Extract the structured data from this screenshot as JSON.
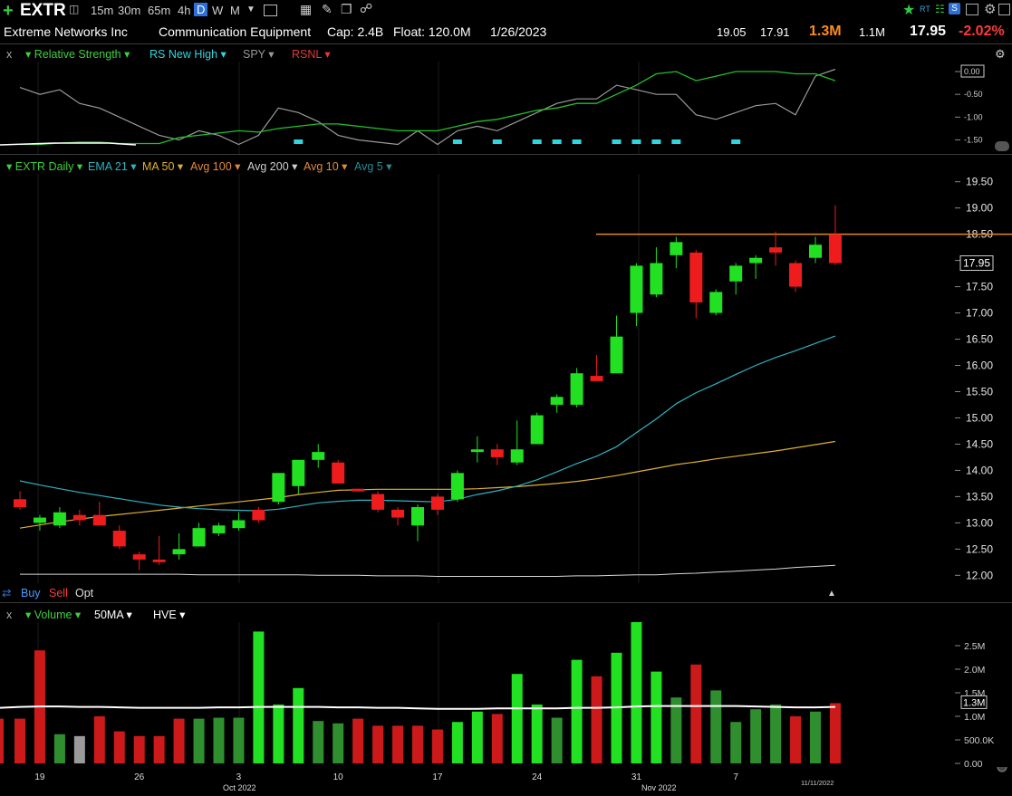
{
  "toolbar": {
    "symbol": "EXTR",
    "timeframes": [
      "15m",
      "30m",
      "65m",
      "4h",
      "D",
      "W",
      "M"
    ],
    "active_timeframe": "D"
  },
  "info": {
    "company": "Extreme Networks Inc",
    "industry": "Communication Equipment",
    "cap": "Cap: 2.4B",
    "float": "Float: 120.0M",
    "date": "1/26/2023",
    "high": "19.05",
    "low": "17.91",
    "volume": "1.3M",
    "avg_volume": "1.1M",
    "last": "17.95",
    "change": "-2.02%"
  },
  "rs_pane": {
    "close": "x",
    "items": [
      "Relative Strength",
      "RS New High",
      "SPY",
      "RSNL"
    ],
    "colors": {
      "rs": "#22c02a",
      "rsnh": "#2fd6e0",
      "spy": "#9a9a9a",
      "rsnl": "#e03a3a"
    },
    "axis": [
      "0.00",
      "-0.50",
      "-1.00",
      "-1.50"
    ]
  },
  "price_pane": {
    "items": [
      "EXTR Daily",
      "EMA 21",
      "MA 50",
      "Avg 100",
      "Avg 200",
      "Avg 10",
      "Avg 5"
    ],
    "colors": [
      "#3ecf3e",
      "#2fb3c0",
      "#e0b030",
      "#e38a3a",
      "#cfcfcf",
      "#e38a3a",
      "#2a8a9a"
    ],
    "axis": [
      "19.50",
      "19.00",
      "18.50",
      "18.00",
      "17.50",
      "17.00",
      "16.50",
      "16.00",
      "15.50",
      "15.00",
      "14.50",
      "14.00",
      "13.50",
      "13.00",
      "12.50",
      "12.00"
    ],
    "last_label": "17.95"
  },
  "order_bar": {
    "buy": "Buy",
    "sell": "Sell",
    "opt": "Opt"
  },
  "volume_pane": {
    "close": "x",
    "items": [
      "Volume",
      "50MA",
      "HVE"
    ],
    "axis": [
      "2.5M",
      "2.0M",
      "1.5M",
      "1.0M",
      "500.0K",
      "0.00"
    ],
    "last_label": "1.3M"
  },
  "x_axis": {
    "labels": [
      "19",
      "26",
      "3",
      "10",
      "17",
      "24",
      "31",
      "7"
    ],
    "months": [
      "Oct 2022",
      "Nov 2022"
    ],
    "last_date": "11/11/2022"
  },
  "chart_data": {
    "type": "candlestick",
    "title": "EXTR Daily",
    "ylim": [
      11.85,
      19.65
    ],
    "candles": [
      {
        "o": 13.45,
        "h": 13.6,
        "l": 13.25,
        "c": 13.3
      },
      {
        "o": 13.0,
        "h": 13.15,
        "l": 12.85,
        "c": 13.1
      },
      {
        "o": 12.95,
        "h": 13.3,
        "l": 12.9,
        "c": 13.2
      },
      {
        "o": 13.15,
        "h": 13.25,
        "l": 12.95,
        "c": 13.05
      },
      {
        "o": 13.15,
        "h": 13.4,
        "l": 12.95,
        "c": 12.95
      },
      {
        "o": 12.85,
        "h": 12.95,
        "l": 12.5,
        "c": 12.55
      },
      {
        "o": 12.4,
        "h": 12.45,
        "l": 12.1,
        "c": 12.3
      },
      {
        "o": 12.3,
        "h": 12.75,
        "l": 12.2,
        "c": 12.25
      },
      {
        "o": 12.4,
        "h": 12.8,
        "l": 12.3,
        "c": 12.5
      },
      {
        "o": 12.55,
        "h": 13.0,
        "l": 12.55,
        "c": 12.9
      },
      {
        "o": 12.8,
        "h": 13.0,
        "l": 12.75,
        "c": 12.95
      },
      {
        "o": 12.9,
        "h": 13.2,
        "l": 12.85,
        "c": 13.05
      },
      {
        "o": 13.25,
        "h": 13.3,
        "l": 13.0,
        "c": 13.05
      },
      {
        "o": 13.4,
        "h": 13.95,
        "l": 13.35,
        "c": 13.95
      },
      {
        "o": 13.7,
        "h": 14.2,
        "l": 13.55,
        "c": 14.2
      },
      {
        "o": 14.2,
        "h": 14.5,
        "l": 14.05,
        "c": 14.35
      },
      {
        "o": 14.15,
        "h": 14.2,
        "l": 13.75,
        "c": 13.75
      },
      {
        "o": 13.65,
        "h": 13.65,
        "l": 13.6,
        "c": 13.6
      },
      {
        "o": 13.55,
        "h": 13.6,
        "l": 13.2,
        "c": 13.25
      },
      {
        "o": 13.25,
        "h": 13.3,
        "l": 12.95,
        "c": 13.1
      },
      {
        "o": 12.95,
        "h": 13.35,
        "l": 12.65,
        "c": 13.3
      },
      {
        "o": 13.5,
        "h": 13.55,
        "l": 13.15,
        "c": 13.25
      },
      {
        "o": 13.45,
        "h": 14.0,
        "l": 13.4,
        "c": 13.95
      },
      {
        "o": 14.35,
        "h": 14.65,
        "l": 14.15,
        "c": 14.4
      },
      {
        "o": 14.4,
        "h": 14.5,
        "l": 14.1,
        "c": 14.25
      },
      {
        "o": 14.15,
        "h": 14.95,
        "l": 14.1,
        "c": 14.4
      },
      {
        "o": 14.5,
        "h": 15.1,
        "l": 14.5,
        "c": 15.05
      },
      {
        "o": 15.25,
        "h": 15.45,
        "l": 15.1,
        "c": 15.4
      },
      {
        "o": 15.25,
        "h": 15.95,
        "l": 15.2,
        "c": 15.85
      },
      {
        "o": 15.8,
        "h": 16.2,
        "l": 15.7,
        "c": 15.7
      },
      {
        "o": 15.85,
        "h": 16.95,
        "l": 15.85,
        "c": 16.55
      },
      {
        "o": 17.0,
        "h": 17.95,
        "l": 16.75,
        "c": 17.9
      },
      {
        "o": 17.35,
        "h": 18.25,
        "l": 17.3,
        "c": 17.95
      },
      {
        "o": 18.1,
        "h": 18.45,
        "l": 17.85,
        "c": 18.35
      },
      {
        "o": 18.15,
        "h": 18.2,
        "l": 16.9,
        "c": 17.2
      },
      {
        "o": 17.0,
        "h": 17.45,
        "l": 16.95,
        "c": 17.4
      },
      {
        "o": 17.6,
        "h": 17.95,
        "l": 17.35,
        "c": 17.9
      },
      {
        "o": 17.95,
        "h": 18.1,
        "l": 17.65,
        "c": 18.05
      },
      {
        "o": 18.25,
        "h": 18.55,
        "l": 17.9,
        "c": 18.15
      },
      {
        "o": 17.95,
        "h": 18.0,
        "l": 17.4,
        "c": 17.5
      },
      {
        "o": 18.05,
        "h": 18.45,
        "l": 17.95,
        "c": 18.3
      },
      {
        "o": 18.5,
        "h": 19.05,
        "l": 17.91,
        "c": 17.95
      }
    ],
    "ema21": [
      13.8,
      13.72,
      13.65,
      13.58,
      13.52,
      13.46,
      13.4,
      13.34,
      13.3,
      13.27,
      13.25,
      13.24,
      13.23,
      13.26,
      13.32,
      13.38,
      13.41,
      13.43,
      13.43,
      13.42,
      13.41,
      13.4,
      13.45,
      13.54,
      13.61,
      13.7,
      13.82,
      13.97,
      14.13,
      14.27,
      14.45,
      14.72,
      14.98,
      15.27,
      15.48,
      15.65,
      15.83,
      16.0,
      16.15,
      16.28,
      16.42,
      16.56
    ],
    "ma50": [
      12.9,
      12.96,
      13.02,
      13.07,
      13.12,
      13.16,
      13.2,
      13.24,
      13.28,
      13.32,
      13.36,
      13.4,
      13.44,
      13.48,
      13.54,
      13.58,
      13.62,
      13.63,
      13.64,
      13.64,
      13.64,
      13.64,
      13.64,
      13.65,
      13.67,
      13.69,
      13.72,
      13.75,
      13.79,
      13.84,
      13.9,
      13.97,
      14.04,
      14.11,
      14.16,
      14.22,
      14.27,
      14.32,
      14.37,
      14.43,
      14.49,
      14.55
    ],
    "avg200": [
      12.02,
      12.02,
      12.02,
      12.02,
      12.02,
      12.02,
      12.02,
      12.02,
      12.02,
      12.01,
      12.01,
      12.01,
      12.01,
      12.01,
      12.01,
      12.0,
      12.0,
      12.0,
      11.99,
      11.99,
      11.99,
      11.98,
      11.98,
      11.98,
      11.98,
      11.98,
      11.98,
      11.98,
      11.99,
      11.99,
      12.0,
      12.01,
      12.01,
      12.03,
      12.04,
      12.06,
      12.08,
      12.1,
      12.12,
      12.15,
      12.17,
      12.19
    ],
    "resistance": 18.5,
    "volume": [
      0.95,
      2.4,
      0.62,
      0.58,
      1.0,
      0.68,
      0.58,
      0.58,
      0.95,
      0.95,
      0.97,
      0.97,
      2.8,
      1.25,
      1.6,
      0.9,
      0.85,
      0.95,
      0.8,
      0.8,
      0.8,
      0.72,
      0.88,
      1.1,
      1.05,
      1.9,
      1.25,
      0.97,
      2.2,
      1.85,
      2.35,
      3.0,
      1.95,
      1.4,
      2.1,
      1.55,
      0.88,
      1.15,
      1.25,
      1.0,
      1.1,
      1.28
    ],
    "vol_colors": [
      "#cc1a1a",
      "#cc1a1a",
      "#2f8f2f",
      "#9a9a9a",
      "#cc1a1a",
      "#cc1a1a",
      "#cc1a1a",
      "#cc1a1a",
      "#cc1a1a",
      "#2f8f2f",
      "#2f8f2f",
      "#2f8f2f",
      "#22e022",
      "#22e022",
      "#22e022",
      "#2f8f2f",
      "#2f8f2f",
      "#cc1a1a",
      "#cc1a1a",
      "#cc1a1a",
      "#cc1a1a",
      "#cc1a1a",
      "#22e022",
      "#22e022",
      "#cc1a1a",
      "#22e022",
      "#22e022",
      "#2f8f2f",
      "#22e022",
      "#cc1a1a",
      "#22e022",
      "#22e022",
      "#22e022",
      "#2f8f2f",
      "#cc1a1a",
      "#2f8f2f",
      "#2f8f2f",
      "#2f8f2f",
      "#2f8f2f",
      "#cc1a1a",
      "#2f8f2f",
      "#cc1a1a"
    ],
    "vol_ma": [
      1.2,
      1.21,
      1.21,
      1.2,
      1.2,
      1.19,
      1.18,
      1.18,
      1.18,
      1.18,
      1.19,
      1.19,
      1.2,
      1.2,
      1.2,
      1.2,
      1.19,
      1.19,
      1.18,
      1.18,
      1.17,
      1.16,
      1.16,
      1.16,
      1.17,
      1.17,
      1.17,
      1.17,
      1.18,
      1.18,
      1.19,
      1.21,
      1.22,
      1.22,
      1.22,
      1.22,
      1.22,
      1.21,
      1.2,
      1.19,
      1.19,
      1.2
    ],
    "vol_ylim": [
      0,
      3.0
    ],
    "rs": [
      -1.6,
      -1.6,
      -1.57,
      -1.55,
      -1.55,
      -1.58,
      -1.58,
      -1.58,
      -1.45,
      -1.4,
      -1.35,
      -1.3,
      -1.33,
      -1.25,
      -1.2,
      -1.15,
      -1.15,
      -1.2,
      -1.25,
      -1.3,
      -1.3,
      -1.3,
      -1.2,
      -1.1,
      -1.05,
      -0.95,
      -0.85,
      -0.8,
      -0.7,
      -0.7,
      -0.5,
      -0.3,
      -0.05,
      0.0,
      -0.2,
      -0.1,
      0.0,
      0.0,
      0.0,
      -0.05,
      -0.05,
      -0.2
    ],
    "spy": [
      -0.35,
      -0.5,
      -0.4,
      -0.7,
      -0.8,
      -1.0,
      -1.2,
      -1.4,
      -1.5,
      -1.3,
      -1.4,
      -1.6,
      -1.4,
      -0.8,
      -0.9,
      -1.1,
      -1.4,
      -1.5,
      -1.55,
      -1.6,
      -1.3,
      -1.6,
      -1.3,
      -1.2,
      -1.3,
      -1.1,
      -0.9,
      -0.7,
      -0.6,
      -0.6,
      -0.3,
      -0.4,
      -0.5,
      -0.5,
      -0.95,
      -1.05,
      -0.9,
      -0.75,
      -0.7,
      -0.95,
      -0.1,
      0.05
    ],
    "rs_ylim": [
      -1.65,
      0.1
    ],
    "rsnh_marks": [
      14,
      22,
      24,
      26,
      27,
      28,
      30,
      31,
      32,
      33,
      36
    ]
  }
}
